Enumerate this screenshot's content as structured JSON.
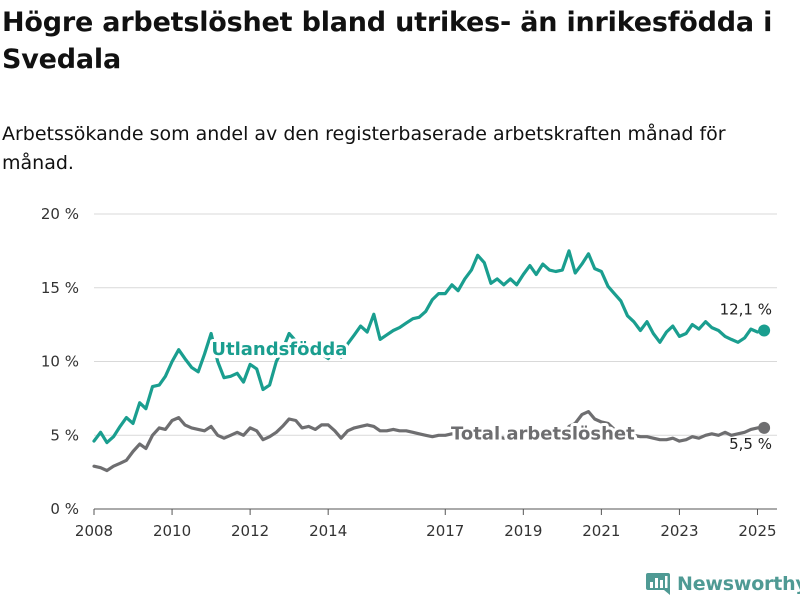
{
  "title": "Högre arbetslöshet bland utrikes- än inrikesfödda i Svedala",
  "subtitle": "Arbetssökande som andel av den registerbaserade arbetskraften månad för månad.",
  "brand": {
    "name": "Newsworthy",
    "icon": "newsworthy-logo-icon",
    "color": "#4f9a94"
  },
  "chart_data": {
    "type": "line",
    "xlabel": "",
    "ylabel": "",
    "xlim": [
      2008,
      2025.5
    ],
    "ylim": [
      0,
      20
    ],
    "grid": true,
    "x_ticks": [
      2008,
      2010,
      2012,
      2014,
      2017,
      2019,
      2021,
      2023,
      2025
    ],
    "y_ticks": [
      {
        "value": 0,
        "label": "0 %"
      },
      {
        "value": 5,
        "label": "5 %"
      },
      {
        "value": 10,
        "label": "10 %"
      },
      {
        "value": 15,
        "label": "15 %"
      },
      {
        "value": 20,
        "label": "20 %"
      }
    ],
    "series": [
      {
        "name": "Utlandsfödda",
        "color": "#1a9e8f",
        "end_label": "12,1 %",
        "points": [
          [
            2008.0,
            4.6
          ],
          [
            2008.17,
            5.2
          ],
          [
            2008.33,
            4.5
          ],
          [
            2008.5,
            4.9
          ],
          [
            2008.67,
            5.6
          ],
          [
            2008.83,
            6.2
          ],
          [
            2009.0,
            5.8
          ],
          [
            2009.17,
            7.2
          ],
          [
            2009.33,
            6.8
          ],
          [
            2009.5,
            8.3
          ],
          [
            2009.67,
            8.4
          ],
          [
            2009.83,
            9.0
          ],
          [
            2010.0,
            10.0
          ],
          [
            2010.17,
            10.8
          ],
          [
            2010.33,
            10.2
          ],
          [
            2010.5,
            9.6
          ],
          [
            2010.67,
            9.3
          ],
          [
            2010.83,
            10.5
          ],
          [
            2011.0,
            11.9
          ],
          [
            2011.17,
            10.0
          ],
          [
            2011.33,
            8.9
          ],
          [
            2011.5,
            9.0
          ],
          [
            2011.67,
            9.2
          ],
          [
            2011.83,
            8.6
          ],
          [
            2012.0,
            9.8
          ],
          [
            2012.17,
            9.5
          ],
          [
            2012.33,
            8.1
          ],
          [
            2012.5,
            8.4
          ],
          [
            2012.67,
            10.0
          ],
          [
            2012.83,
            10.8
          ],
          [
            2013.0,
            11.9
          ],
          [
            2013.17,
            11.4
          ],
          [
            2013.33,
            11.0
          ],
          [
            2013.5,
            11.1
          ],
          [
            2013.67,
            10.7
          ],
          [
            2013.83,
            10.5
          ],
          [
            2014.0,
            10.2
          ],
          [
            2014.17,
            10.9
          ],
          [
            2014.33,
            10.3
          ],
          [
            2014.5,
            11.2
          ],
          [
            2014.67,
            11.8
          ],
          [
            2014.83,
            12.4
          ],
          [
            2015.0,
            12.0
          ],
          [
            2015.17,
            13.2
          ],
          [
            2015.33,
            11.5
          ],
          [
            2015.5,
            11.8
          ],
          [
            2015.67,
            12.1
          ],
          [
            2015.83,
            12.3
          ],
          [
            2016.0,
            12.6
          ],
          [
            2016.17,
            12.9
          ],
          [
            2016.33,
            13.0
          ],
          [
            2016.5,
            13.4
          ],
          [
            2016.67,
            14.2
          ],
          [
            2016.83,
            14.6
          ],
          [
            2017.0,
            14.6
          ],
          [
            2017.17,
            15.2
          ],
          [
            2017.33,
            14.8
          ],
          [
            2017.5,
            15.6
          ],
          [
            2017.67,
            16.2
          ],
          [
            2017.83,
            17.2
          ],
          [
            2018.0,
            16.7
          ],
          [
            2018.17,
            15.3
          ],
          [
            2018.33,
            15.6
          ],
          [
            2018.5,
            15.2
          ],
          [
            2018.67,
            15.6
          ],
          [
            2018.83,
            15.2
          ],
          [
            2019.0,
            15.9
          ],
          [
            2019.17,
            16.5
          ],
          [
            2019.33,
            15.9
          ],
          [
            2019.5,
            16.6
          ],
          [
            2019.67,
            16.2
          ],
          [
            2019.83,
            16.1
          ],
          [
            2020.0,
            16.2
          ],
          [
            2020.17,
            17.5
          ],
          [
            2020.33,
            16.0
          ],
          [
            2020.5,
            16.6
          ],
          [
            2020.67,
            17.3
          ],
          [
            2020.83,
            16.3
          ],
          [
            2021.0,
            16.1
          ],
          [
            2021.17,
            15.1
          ],
          [
            2021.33,
            14.6
          ],
          [
            2021.5,
            14.1
          ],
          [
            2021.67,
            13.1
          ],
          [
            2021.83,
            12.7
          ],
          [
            2022.0,
            12.1
          ],
          [
            2022.17,
            12.7
          ],
          [
            2022.33,
            11.9
          ],
          [
            2022.5,
            11.3
          ],
          [
            2022.67,
            12.0
          ],
          [
            2022.83,
            12.4
          ],
          [
            2023.0,
            11.7
          ],
          [
            2023.17,
            11.9
          ],
          [
            2023.33,
            12.5
          ],
          [
            2023.5,
            12.2
          ],
          [
            2023.67,
            12.7
          ],
          [
            2023.83,
            12.3
          ],
          [
            2024.0,
            12.1
          ],
          [
            2024.17,
            11.7
          ],
          [
            2024.33,
            11.5
          ],
          [
            2024.5,
            11.3
          ],
          [
            2024.67,
            11.6
          ],
          [
            2024.83,
            12.2
          ],
          [
            2025.0,
            12.0
          ],
          [
            2025.17,
            12.1
          ]
        ]
      },
      {
        "name": "Total arbetslöshet",
        "color": "#6e6e70",
        "end_label": "5,5 %",
        "points": [
          [
            2008.0,
            2.9
          ],
          [
            2008.17,
            2.8
          ],
          [
            2008.33,
            2.6
          ],
          [
            2008.5,
            2.9
          ],
          [
            2008.67,
            3.1
          ],
          [
            2008.83,
            3.3
          ],
          [
            2009.0,
            3.9
          ],
          [
            2009.17,
            4.4
          ],
          [
            2009.33,
            4.1
          ],
          [
            2009.5,
            5.0
          ],
          [
            2009.67,
            5.5
          ],
          [
            2009.83,
            5.4
          ],
          [
            2010.0,
            6.0
          ],
          [
            2010.17,
            6.2
          ],
          [
            2010.33,
            5.7
          ],
          [
            2010.5,
            5.5
          ],
          [
            2010.67,
            5.4
          ],
          [
            2010.83,
            5.3
          ],
          [
            2011.0,
            5.6
          ],
          [
            2011.17,
            5.0
          ],
          [
            2011.33,
            4.8
          ],
          [
            2011.5,
            5.0
          ],
          [
            2011.67,
            5.2
          ],
          [
            2011.83,
            5.0
          ],
          [
            2012.0,
            5.5
          ],
          [
            2012.17,
            5.3
          ],
          [
            2012.33,
            4.7
          ],
          [
            2012.5,
            4.9
          ],
          [
            2012.67,
            5.2
          ],
          [
            2012.83,
            5.6
          ],
          [
            2013.0,
            6.1
          ],
          [
            2013.17,
            6.0
          ],
          [
            2013.33,
            5.5
          ],
          [
            2013.5,
            5.6
          ],
          [
            2013.67,
            5.4
          ],
          [
            2013.83,
            5.7
          ],
          [
            2014.0,
            5.7
          ],
          [
            2014.17,
            5.3
          ],
          [
            2014.33,
            4.8
          ],
          [
            2014.5,
            5.3
          ],
          [
            2014.67,
            5.5
          ],
          [
            2014.83,
            5.6
          ],
          [
            2015.0,
            5.7
          ],
          [
            2015.17,
            5.6
          ],
          [
            2015.33,
            5.3
          ],
          [
            2015.5,
            5.3
          ],
          [
            2015.67,
            5.4
          ],
          [
            2015.83,
            5.3
          ],
          [
            2016.0,
            5.3
          ],
          [
            2016.17,
            5.2
          ],
          [
            2016.33,
            5.1
          ],
          [
            2016.5,
            5.0
          ],
          [
            2016.67,
            4.9
          ],
          [
            2016.83,
            5.0
          ],
          [
            2017.0,
            5.0
          ],
          [
            2017.17,
            5.1
          ],
          [
            2017.33,
            5.0
          ],
          [
            2017.5,
            4.9
          ],
          [
            2017.67,
            5.0
          ],
          [
            2017.83,
            5.1
          ],
          [
            2018.0,
            5.0
          ],
          [
            2018.17,
            4.8
          ],
          [
            2018.33,
            4.9
          ],
          [
            2018.5,
            4.8
          ],
          [
            2018.67,
            4.9
          ],
          [
            2018.83,
            4.8
          ],
          [
            2019.0,
            4.8
          ],
          [
            2019.17,
            4.9
          ],
          [
            2019.33,
            4.8
          ],
          [
            2019.5,
            4.9
          ],
          [
            2019.67,
            4.8
          ],
          [
            2019.83,
            4.9
          ],
          [
            2020.0,
            5.0
          ],
          [
            2020.17,
            5.6
          ],
          [
            2020.33,
            5.8
          ],
          [
            2020.5,
            6.4
          ],
          [
            2020.67,
            6.6
          ],
          [
            2020.83,
            6.1
          ],
          [
            2021.0,
            5.9
          ],
          [
            2021.17,
            5.8
          ],
          [
            2021.33,
            5.4
          ],
          [
            2021.5,
            5.3
          ],
          [
            2021.67,
            5.1
          ],
          [
            2021.83,
            5.0
          ],
          [
            2022.0,
            4.9
          ],
          [
            2022.17,
            4.9
          ],
          [
            2022.33,
            4.8
          ],
          [
            2022.5,
            4.7
          ],
          [
            2022.67,
            4.7
          ],
          [
            2022.83,
            4.8
          ],
          [
            2023.0,
            4.6
          ],
          [
            2023.17,
            4.7
          ],
          [
            2023.33,
            4.9
          ],
          [
            2023.5,
            4.8
          ],
          [
            2023.67,
            5.0
          ],
          [
            2023.83,
            5.1
          ],
          [
            2024.0,
            5.0
          ],
          [
            2024.17,
            5.2
          ],
          [
            2024.33,
            5.0
          ],
          [
            2024.5,
            5.1
          ],
          [
            2024.67,
            5.2
          ],
          [
            2024.83,
            5.4
          ],
          [
            2025.0,
            5.5
          ],
          [
            2025.17,
            5.5
          ]
        ]
      }
    ],
    "annotations": [
      {
        "text": "Utlandsfödda",
        "series": 0,
        "x": 2012.75,
        "y": 10.9
      },
      {
        "text": "Total arbetslöshet",
        "series": 1,
        "x": 2019.5,
        "y": 5.2
      }
    ]
  }
}
